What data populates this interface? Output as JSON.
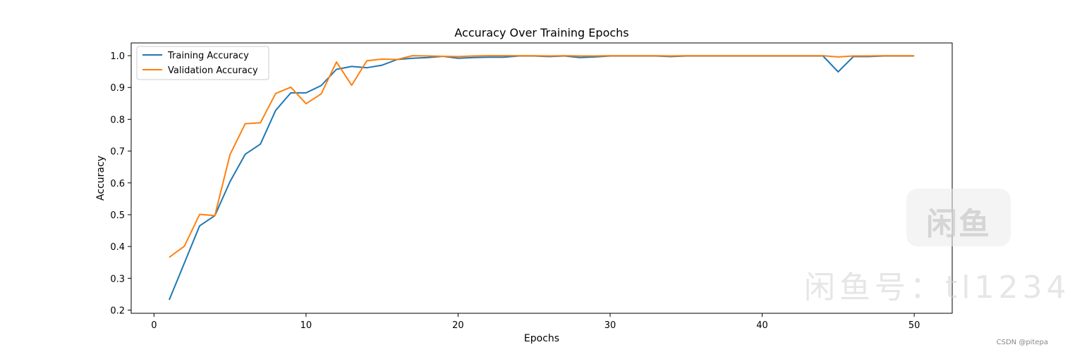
{
  "chart_data": {
    "type": "line",
    "title": "Accuracy Over Training Epochs",
    "xlabel": "Epochs",
    "ylabel": "Accuracy",
    "xlim": [
      -1.5,
      52.5
    ],
    "ylim": [
      0.19,
      1.04
    ],
    "x_ticks": [
      0,
      10,
      20,
      30,
      40,
      50
    ],
    "y_ticks": [
      0.2,
      0.3,
      0.4,
      0.5,
      0.6,
      0.7,
      0.8,
      0.9,
      1.0
    ],
    "x_tick_labels": [
      "0",
      "10",
      "20",
      "30",
      "40",
      "50"
    ],
    "y_tick_labels": [
      "0.2",
      "0.3",
      "0.4",
      "0.5",
      "0.6",
      "0.7",
      "0.8",
      "0.9",
      "1.0"
    ],
    "grid": false,
    "legend_position": "top-left",
    "x": [
      1,
      2,
      3,
      4,
      5,
      6,
      7,
      8,
      9,
      10,
      11,
      12,
      13,
      14,
      15,
      16,
      17,
      18,
      19,
      20,
      21,
      22,
      23,
      24,
      25,
      26,
      27,
      28,
      29,
      30,
      31,
      32,
      33,
      34,
      35,
      36,
      37,
      38,
      39,
      40,
      41,
      42,
      43,
      44,
      45,
      46,
      47,
      48,
      49,
      50
    ],
    "series": [
      {
        "name": "Training Accuracy",
        "color": "#1f77b4",
        "values": [
          0.232,
          0.348,
          0.465,
          0.497,
          0.604,
          0.69,
          0.722,
          0.828,
          0.883,
          0.883,
          0.906,
          0.957,
          0.966,
          0.962,
          0.97,
          0.988,
          0.992,
          0.994,
          0.998,
          0.992,
          0.994,
          0.995,
          0.995,
          0.999,
          0.999,
          0.997,
          0.999,
          0.994,
          0.996,
          0.999,
          0.999,
          0.999,
          0.999,
          0.997,
          0.999,
          0.999,
          0.999,
          0.999,
          0.999,
          0.999,
          0.999,
          0.999,
          0.999,
          0.999,
          0.949,
          0.997,
          0.997,
          0.999,
          0.999,
          0.999
        ]
      },
      {
        "name": "Validation Accuracy",
        "color": "#ff7f0e",
        "values": [
          0.366,
          0.401,
          0.501,
          0.497,
          0.689,
          0.786,
          0.789,
          0.881,
          0.901,
          0.849,
          0.88,
          0.98,
          0.907,
          0.984,
          0.989,
          0.988,
          1.0,
          0.999,
          0.998,
          0.997,
          0.999,
          1.0,
          1.0,
          1.0,
          1.0,
          0.999,
          1.0,
          0.999,
          0.999,
          1.0,
          1.0,
          1.0,
          1.0,
          0.999,
          1.0,
          1.0,
          1.0,
          1.0,
          1.0,
          1.0,
          1.0,
          1.0,
          1.0,
          1.0,
          0.996,
          0.999,
          0.999,
          1.0,
          1.0,
          1.0
        ]
      }
    ]
  },
  "watermark": {
    "badge_text": "闲鱼",
    "text": "闲鱼号：tl1234"
  },
  "credit": "CSDN @pitepa"
}
